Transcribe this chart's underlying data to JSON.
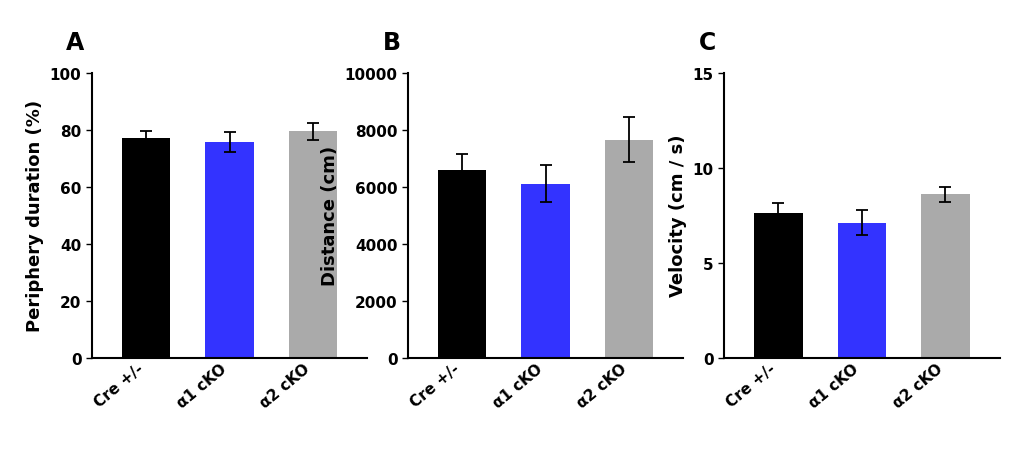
{
  "panels": [
    {
      "label": "A",
      "ylabel": "Periphery duration (%)",
      "ylim": [
        0,
        100
      ],
      "yticks": [
        0,
        20,
        40,
        60,
        80,
        100
      ],
      "values": [
        77.0,
        75.5,
        79.5
      ],
      "errors": [
        2.5,
        3.5,
        3.0
      ]
    },
    {
      "label": "B",
      "ylabel": "Distance (cm)",
      "ylim": [
        0,
        10000
      ],
      "yticks": [
        0,
        2000,
        4000,
        6000,
        8000,
        10000
      ],
      "values": [
        6600,
        6100,
        7650
      ],
      "errors": [
        550,
        650,
        800
      ]
    },
    {
      "label": "C",
      "ylabel": "Velocity (cm / s)",
      "ylim": [
        0,
        15
      ],
      "yticks": [
        0,
        5,
        10,
        15
      ],
      "values": [
        7.6,
        7.1,
        8.6
      ],
      "errors": [
        0.55,
        0.65,
        0.4
      ]
    }
  ],
  "categories": [
    "Cre +/-",
    "α1 cKO",
    "α2 cKO"
  ],
  "bar_colors": [
    "#000000",
    "#3333ff",
    "#aaaaaa"
  ],
  "bar_width": 0.58,
  "capsize": 4,
  "error_color": "#000000",
  "error_linewidth": 1.3,
  "background_color": "#ffffff",
  "ylabel_fontsize": 13,
  "tick_fontsize": 11,
  "panel_label_fontsize": 17,
  "xticklabel_fontsize": 11
}
